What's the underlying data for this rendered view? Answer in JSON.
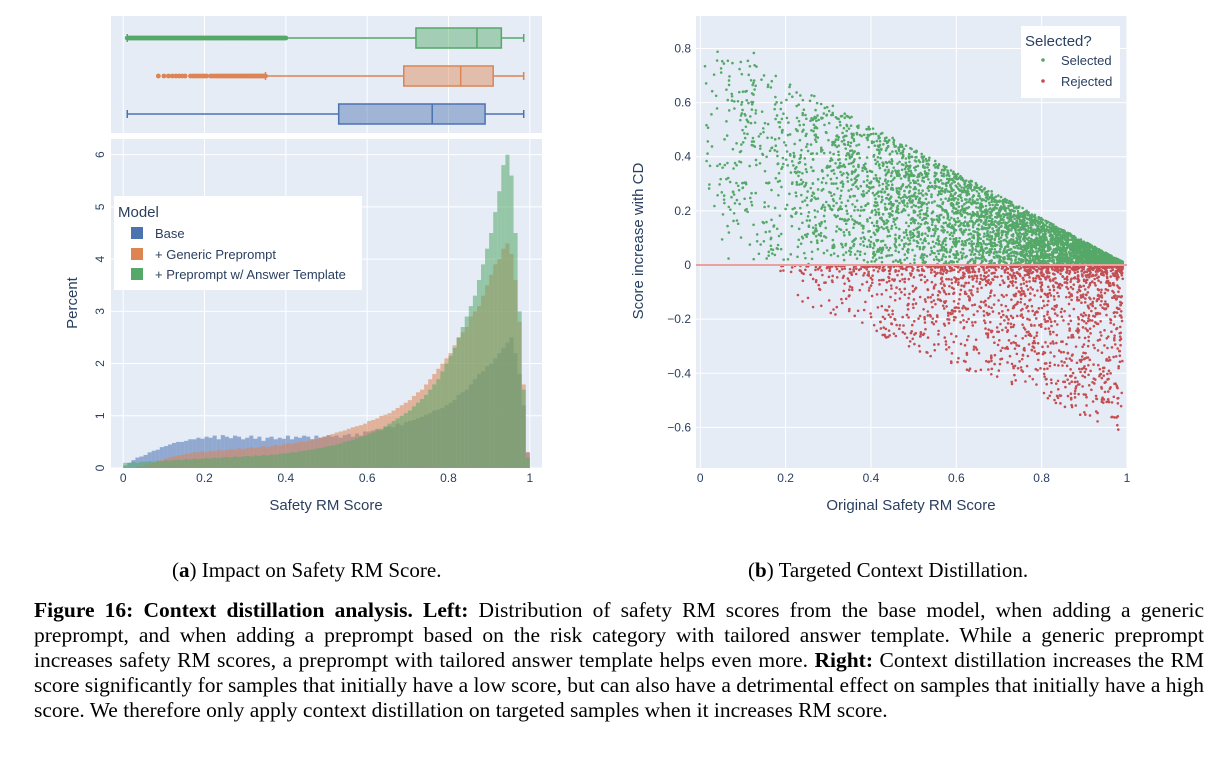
{
  "colors": {
    "plot_bg": "#e5ecf6",
    "grid": "#ffffff",
    "base": "#4c72b0",
    "generic": "#dd8452",
    "template": "#55a868",
    "selected": "#55a868",
    "rejected": "#c44e52",
    "zero_line": "#e8a0a0"
  },
  "subcaptions": {
    "a_label": "a",
    "a_text": "Impact on Safety RM Score.",
    "b_label": "b",
    "b_text": "Targeted Context Distillation."
  },
  "figure_caption": {
    "lead": "Figure 16: Context distillation analysis.",
    "left_label": "Left:",
    "left_text": "Distribution of safety RM scores from the base model, when adding a generic preprompt, and when adding a preprompt based on the risk category with tailored answer template. While a generic preprompt increases safety RM scores, a preprompt with tailored answer template helps even more.",
    "right_label": "Right:",
    "right_text": "Context distillation increases the RM score significantly for samples that initially have a low score, but can also have a detrimental effect on samples that initially have a high score. We therefore only apply context distillation on targeted samples when it increases RM score."
  },
  "chart_data": [
    {
      "type": "box",
      "description_key": "left-top",
      "x_range": [
        -0.03,
        1.03
      ],
      "boxes": [
        {
          "name": "+ Preprompt w/ Answer Template",
          "whisker_low": 0.01,
          "q1": 0.72,
          "median": 0.87,
          "q3": 0.93,
          "whisker_high": 0.985,
          "outliers_range": [
            0.01,
            0.4
          ]
        },
        {
          "name": "+ Generic Preprompt",
          "whisker_low": 0.35,
          "q1": 0.69,
          "median": 0.83,
          "q3": 0.91,
          "whisker_high": 0.985,
          "outliers_range": [
            0.06,
            0.35
          ]
        },
        {
          "name": "Base",
          "whisker_low": 0.01,
          "q1": 0.53,
          "median": 0.76,
          "q3": 0.89,
          "whisker_high": 0.985,
          "outliers_range": []
        }
      ]
    },
    {
      "type": "histogram",
      "description_key": "left-bottom",
      "xlabel": "Safety RM Score",
      "ylabel": "Percent",
      "xlim": [
        -0.03,
        1.03
      ],
      "ylim": [
        0,
        6.3
      ],
      "x_ticks": [
        "0",
        "0.2",
        "0.4",
        "0.6",
        "0.8",
        "1"
      ],
      "y_ticks": [
        "0",
        "1",
        "2",
        "3",
        "4",
        "5",
        "6"
      ],
      "legend_title": "Model",
      "bin_start": 0.0,
      "bin_width": 0.01,
      "series": [
        {
          "name": "Base",
          "values": [
            0.05,
            0.1,
            0.15,
            0.2,
            0.22,
            0.25,
            0.3,
            0.33,
            0.35,
            0.4,
            0.42,
            0.45,
            0.48,
            0.5,
            0.5,
            0.52,
            0.55,
            0.55,
            0.58,
            0.56,
            0.6,
            0.58,
            0.62,
            0.55,
            0.63,
            0.6,
            0.57,
            0.62,
            0.6,
            0.55,
            0.58,
            0.62,
            0.56,
            0.6,
            0.52,
            0.58,
            0.6,
            0.55,
            0.58,
            0.56,
            0.62,
            0.55,
            0.6,
            0.58,
            0.62,
            0.6,
            0.55,
            0.62,
            0.58,
            0.6,
            0.63,
            0.6,
            0.62,
            0.58,
            0.63,
            0.65,
            0.6,
            0.66,
            0.62,
            0.7,
            0.7,
            0.72,
            0.75,
            0.72,
            0.78,
            0.8,
            0.78,
            0.85,
            0.82,
            0.88,
            0.9,
            0.92,
            0.95,
            0.98,
            1.02,
            1.05,
            1.1,
            1.12,
            1.15,
            1.2,
            1.25,
            1.3,
            1.4,
            1.45,
            1.5,
            1.6,
            1.7,
            1.8,
            1.85,
            1.95,
            2.0,
            2.1,
            2.2,
            2.3,
            2.4,
            2.5,
            2.2,
            1.8,
            1.2,
            0.3
          ]
        },
        {
          "name": "+ Generic Preprompt",
          "values": [
            0,
            0,
            0,
            0.02,
            0.04,
            0.05,
            0.08,
            0.1,
            0.12,
            0.15,
            0.18,
            0.2,
            0.22,
            0.24,
            0.25,
            0.27,
            0.28,
            0.3,
            0.3,
            0.32,
            0.3,
            0.33,
            0.32,
            0.35,
            0.33,
            0.35,
            0.36,
            0.35,
            0.38,
            0.36,
            0.38,
            0.4,
            0.38,
            0.4,
            0.42,
            0.4,
            0.42,
            0.44,
            0.43,
            0.45,
            0.47,
            0.46,
            0.48,
            0.5,
            0.5,
            0.52,
            0.55,
            0.55,
            0.58,
            0.6,
            0.62,
            0.65,
            0.68,
            0.7,
            0.72,
            0.75,
            0.78,
            0.8,
            0.82,
            0.85,
            0.9,
            0.92,
            0.95,
            1.0,
            1.02,
            1.05,
            1.1,
            1.15,
            1.2,
            1.25,
            1.3,
            1.38,
            1.45,
            1.5,
            1.6,
            1.7,
            1.8,
            1.9,
            2.0,
            2.1,
            2.2,
            2.35,
            2.5,
            2.6,
            2.7,
            2.9,
            3.0,
            3.1,
            3.3,
            3.5,
            3.7,
            3.9,
            4.0,
            4.2,
            4.3,
            4.1,
            3.6,
            2.8,
            1.6,
            0.3
          ]
        },
        {
          "name": "+ Preprompt w/ Answer Template",
          "values": [
            0.1,
            0.1,
            0.12,
            0.1,
            0.12,
            0.12,
            0.13,
            0.12,
            0.14,
            0.13,
            0.15,
            0.14,
            0.15,
            0.16,
            0.15,
            0.17,
            0.16,
            0.18,
            0.17,
            0.18,
            0.19,
            0.18,
            0.2,
            0.19,
            0.2,
            0.21,
            0.2,
            0.22,
            0.21,
            0.22,
            0.23,
            0.22,
            0.24,
            0.23,
            0.25,
            0.24,
            0.26,
            0.25,
            0.27,
            0.28,
            0.28,
            0.3,
            0.3,
            0.32,
            0.33,
            0.34,
            0.35,
            0.37,
            0.38,
            0.4,
            0.42,
            0.43,
            0.45,
            0.47,
            0.5,
            0.52,
            0.54,
            0.57,
            0.6,
            0.62,
            0.65,
            0.68,
            0.72,
            0.75,
            0.8,
            0.85,
            0.9,
            0.95,
            1.0,
            1.05,
            1.1,
            1.18,
            1.25,
            1.32,
            1.4,
            1.5,
            1.6,
            1.7,
            1.85,
            2.0,
            2.15,
            2.3,
            2.5,
            2.7,
            2.9,
            3.1,
            3.3,
            3.6,
            3.9,
            4.2,
            4.5,
            4.9,
            5.3,
            5.8,
            6.0,
            5.6,
            4.5,
            3.0,
            1.5,
            0.2
          ]
        }
      ]
    },
    {
      "type": "scatter",
      "description_key": "right",
      "xlabel": "Original Safety RM Score",
      "ylabel": "Score increase with CD",
      "xlim": [
        -0.01,
        1.0
      ],
      "ylim": [
        -0.75,
        0.92
      ],
      "x_ticks": [
        "0",
        "0.2",
        "0.4",
        "0.6",
        "0.8",
        "1"
      ],
      "y_ticks": [
        "0.8",
        "0.6",
        "0.4",
        "0.2",
        "0",
        "−0.2",
        "−0.4",
        "−0.6"
      ],
      "y_tick_values": [
        0.8,
        0.6,
        0.4,
        0.2,
        0,
        -0.2,
        -0.4,
        -0.6
      ],
      "legend_title": "Selected?",
      "series": [
        {
          "name": "Selected",
          "color_key": "selected",
          "upper_envelope": "0.85 - 0.85*x",
          "x_range": [
            0.01,
            0.99
          ]
        },
        {
          "name": "Rejected",
          "color_key": "rejected",
          "lower_envelope": "-0.65*x",
          "x_range": [
            0.15,
            0.99
          ]
        }
      ]
    }
  ]
}
